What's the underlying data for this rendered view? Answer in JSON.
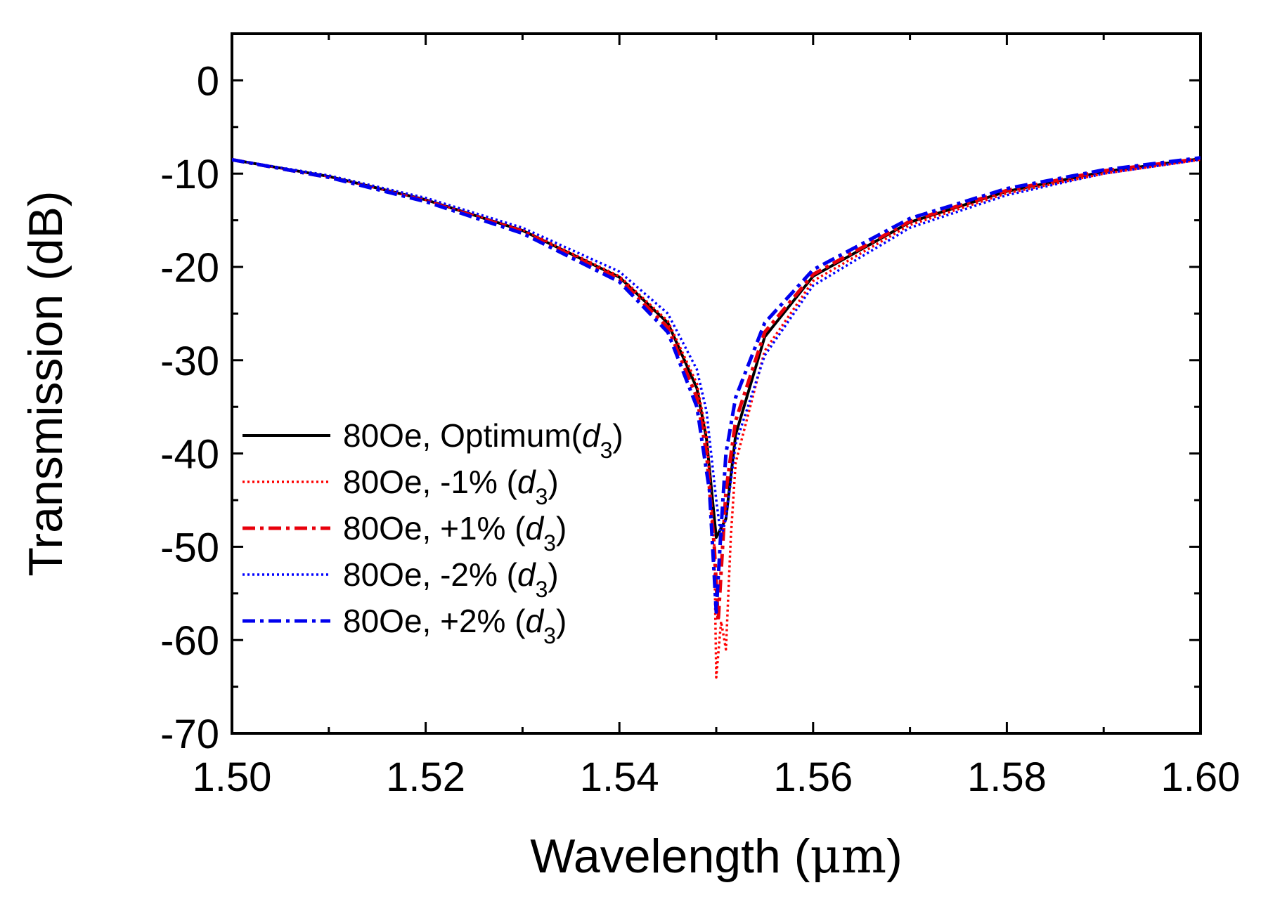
{
  "chart_data": {
    "type": "line",
    "title": "",
    "xlabel_prefix": "Wavelength (",
    "xlabel_unit": "μm",
    "xlabel_suffix": ")",
    "ylabel": "Transmission (dB)",
    "xlim": [
      1.5,
      1.6
    ],
    "ylim": [
      -70,
      5
    ],
    "x_ticks": [
      1.5,
      1.52,
      1.54,
      1.56,
      1.58,
      1.6
    ],
    "x_tick_labels": [
      "1.50",
      "1.52",
      "1.54",
      "1.56",
      "1.58",
      "1.60"
    ],
    "x_minor_step": 0.01,
    "y_ticks": [
      0,
      -10,
      -20,
      -30,
      -40,
      -50,
      -60,
      -70
    ],
    "y_tick_labels": [
      "0",
      "-10",
      "-20",
      "-30",
      "-40",
      "-50",
      "-60",
      "-70"
    ],
    "y_minor_step": 5,
    "grid": false,
    "legend_position": "lower-left",
    "series": [
      {
        "name": "80Oe, Optimum(d3)",
        "legend_prefix": "80Oe, Optimum(",
        "legend_var": "d",
        "legend_sub": "3",
        "legend_suffix": ")",
        "color": "#000000",
        "style": "solid",
        "resonance_um": 1.5505,
        "min_db": -49,
        "points": [
          [
            1.5,
            -8.5
          ],
          [
            1.51,
            -10.3
          ],
          [
            1.52,
            -12.8
          ],
          [
            1.53,
            -16.1
          ],
          [
            1.54,
            -21.1
          ],
          [
            1.545,
            -26.0
          ],
          [
            1.548,
            -33.0
          ],
          [
            1.549,
            -38.5
          ],
          [
            1.55,
            -49.0
          ],
          [
            1.551,
            -47.0
          ],
          [
            1.552,
            -38.0
          ],
          [
            1.555,
            -27.5
          ],
          [
            1.56,
            -21.0
          ],
          [
            1.57,
            -15.2
          ],
          [
            1.58,
            -11.9
          ],
          [
            1.59,
            -9.8
          ],
          [
            1.6,
            -8.4
          ]
        ]
      },
      {
        "name": "80Oe, -1% (d3)",
        "legend_prefix": "80Oe, -1% (",
        "legend_var": "d",
        "legend_sub": "3",
        "legend_suffix": ")",
        "color": "#ff0000",
        "style": "dotted",
        "resonance_um": 1.5505,
        "min_db": -64,
        "points": [
          [
            1.5,
            -8.5
          ],
          [
            1.51,
            -10.3
          ],
          [
            1.52,
            -12.8
          ],
          [
            1.53,
            -16.0
          ],
          [
            1.54,
            -21.0
          ],
          [
            1.545,
            -25.8
          ],
          [
            1.548,
            -32.5
          ],
          [
            1.549,
            -38.0
          ],
          [
            1.5498,
            -50.0
          ],
          [
            1.55,
            -64.0
          ],
          [
            1.5505,
            -58.0
          ],
          [
            1.551,
            -61.0
          ],
          [
            1.5515,
            -49.0
          ],
          [
            1.552,
            -41.0
          ],
          [
            1.555,
            -29.0
          ],
          [
            1.56,
            -21.5
          ],
          [
            1.57,
            -15.5
          ],
          [
            1.58,
            -12.1
          ],
          [
            1.59,
            -10.0
          ],
          [
            1.6,
            -8.5
          ]
        ]
      },
      {
        "name": "80Oe, +1% (d3)",
        "legend_prefix": "80Oe, +1% (",
        "legend_var": "d",
        "legend_sub": "3",
        "legend_suffix": ")",
        "color": "#e8000b",
        "style": "dashdot",
        "resonance_um": 1.5502,
        "min_db": -58,
        "points": [
          [
            1.5,
            -8.5
          ],
          [
            1.51,
            -10.4
          ],
          [
            1.52,
            -12.9
          ],
          [
            1.53,
            -16.2
          ],
          [
            1.54,
            -21.3
          ],
          [
            1.545,
            -26.5
          ],
          [
            1.548,
            -34.0
          ],
          [
            1.549,
            -40.0
          ],
          [
            1.5498,
            -50.0
          ],
          [
            1.5502,
            -58.0
          ],
          [
            1.551,
            -44.0
          ],
          [
            1.552,
            -36.5
          ],
          [
            1.555,
            -27.0
          ],
          [
            1.56,
            -20.8
          ],
          [
            1.57,
            -15.1
          ],
          [
            1.58,
            -11.8
          ],
          [
            1.59,
            -9.7
          ],
          [
            1.6,
            -8.4
          ]
        ]
      },
      {
        "name": "80Oe, -2% (d3)",
        "legend_prefix": "80Oe, -2% (",
        "legend_var": "d",
        "legend_sub": "3",
        "legend_suffix": ")",
        "color": "#0000ff",
        "style": "dotted",
        "resonance_um": 1.5505,
        "min_db": -49,
        "points": [
          [
            1.5,
            -8.5
          ],
          [
            1.51,
            -10.2
          ],
          [
            1.52,
            -12.6
          ],
          [
            1.53,
            -15.8
          ],
          [
            1.54,
            -20.5
          ],
          [
            1.545,
            -25.0
          ],
          [
            1.548,
            -31.0
          ],
          [
            1.549,
            -35.5
          ],
          [
            1.55,
            -45.0
          ],
          [
            1.5505,
            -49.0
          ],
          [
            1.551,
            -47.0
          ],
          [
            1.5515,
            -43.0
          ],
          [
            1.552,
            -39.0
          ],
          [
            1.555,
            -29.5
          ],
          [
            1.56,
            -22.0
          ],
          [
            1.57,
            -15.8
          ],
          [
            1.58,
            -12.3
          ],
          [
            1.59,
            -10.0
          ],
          [
            1.6,
            -8.5
          ]
        ]
      },
      {
        "name": "80Oe, +2% (d3)",
        "legend_prefix": "80Oe, +2% (",
        "legend_var": "d",
        "legend_sub": "3",
        "legend_suffix": ")",
        "color": "#0000ee",
        "style": "dashdot",
        "resonance_um": 1.55,
        "min_db": -57,
        "points": [
          [
            1.5,
            -8.5
          ],
          [
            1.51,
            -10.4
          ],
          [
            1.52,
            -13.0
          ],
          [
            1.53,
            -16.4
          ],
          [
            1.54,
            -21.6
          ],
          [
            1.545,
            -27.0
          ],
          [
            1.548,
            -35.0
          ],
          [
            1.5493,
            -44.0
          ],
          [
            1.55,
            -57.0
          ],
          [
            1.5505,
            -48.0
          ],
          [
            1.551,
            -40.0
          ],
          [
            1.552,
            -34.0
          ],
          [
            1.555,
            -26.0
          ],
          [
            1.56,
            -20.3
          ],
          [
            1.57,
            -14.8
          ],
          [
            1.58,
            -11.6
          ],
          [
            1.59,
            -9.6
          ],
          [
            1.6,
            -8.3
          ]
        ]
      }
    ]
  }
}
